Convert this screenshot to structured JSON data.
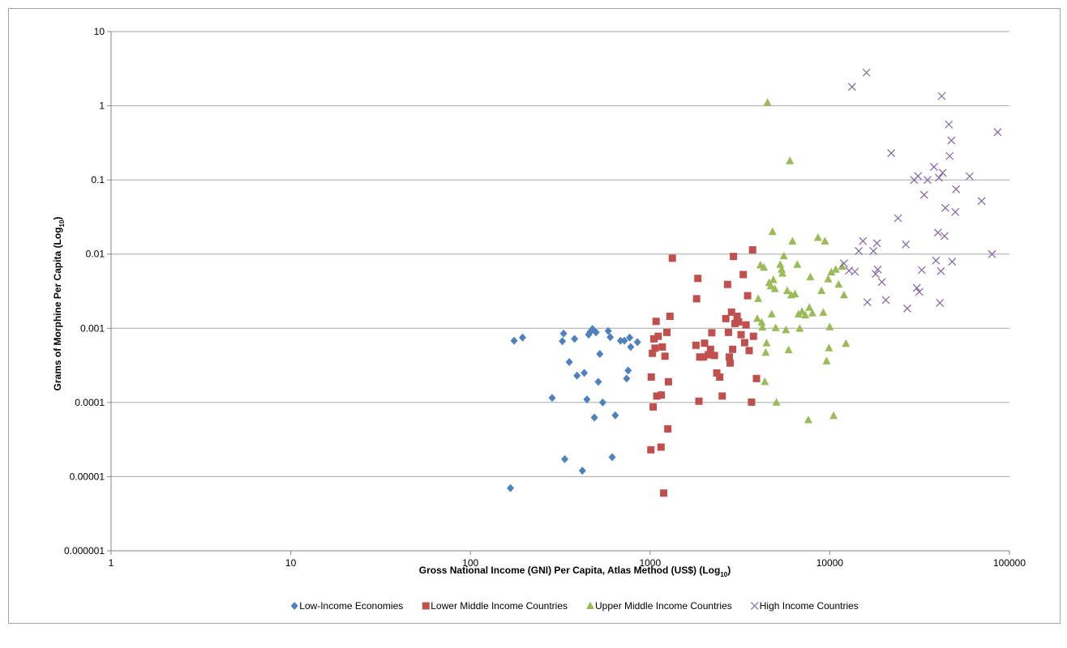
{
  "chart_data": {
    "type": "scatter",
    "title": "",
    "xlabel": {
      "main": "Gross National Income (GNI) Per Capita, Atlas Method (US$) (Log",
      "sub": "10",
      "close": ")"
    },
    "ylabel": {
      "main": "Grams of Morphine Per Capita (Log",
      "sub": "10",
      "close": ")"
    },
    "xscale": "log",
    "yscale": "log",
    "xlim": [
      1,
      100000
    ],
    "ylim": [
      1e-06,
      10
    ],
    "grid": "horizontal",
    "legend_position": "bottom",
    "x_ticks": [
      "1",
      "10",
      "100",
      "1000",
      "10000",
      "100000"
    ],
    "y_ticks": [
      "10",
      "1",
      "0.1",
      "0.01",
      "0.001",
      "0.0001",
      "0.00001",
      "0.000001"
    ],
    "series": [
      {
        "name": "Low-Income Economies",
        "marker": "diamond",
        "color": "#4f81bd",
        "points": [
          [
            167,
            7e-06
          ],
          [
            175,
            0.00068
          ],
          [
            195,
            0.00075
          ],
          [
            285,
            0.000115
          ],
          [
            325,
            0.00067
          ],
          [
            330,
            0.00085
          ],
          [
            335,
            1.72e-05
          ],
          [
            355,
            0.00035
          ],
          [
            380,
            0.00072
          ],
          [
            392,
            0.00023
          ],
          [
            420,
            1.2e-05
          ],
          [
            430,
            0.00025
          ],
          [
            445,
            0.00011
          ],
          [
            455,
            0.00082
          ],
          [
            465,
            0.0009
          ],
          [
            478,
            0.00098
          ],
          [
            490,
            6.25e-05
          ],
          [
            500,
            0.00088
          ],
          [
            515,
            0.00019
          ],
          [
            525,
            0.00045
          ],
          [
            545,
            0.0001
          ],
          [
            585,
            0.00092
          ],
          [
            600,
            0.00076
          ],
          [
            615,
            1.83e-05
          ],
          [
            640,
            6.7e-05
          ],
          [
            685,
            0.00068
          ],
          [
            720,
            0.00068
          ],
          [
            740,
            0.00021
          ],
          [
            755,
            0.00027
          ],
          [
            770,
            0.00075
          ],
          [
            780,
            0.00056
          ],
          [
            850,
            0.00065
          ]
        ]
      },
      {
        "name": "Lower Middle Income Countries",
        "marker": "square",
        "color": "#c0504d",
        "points": [
          [
            1010,
            2.3e-05
          ],
          [
            1015,
            0.00022
          ],
          [
            1030,
            0.00046
          ],
          [
            1040,
            8.7e-05
          ],
          [
            1050,
            0.00072
          ],
          [
            1065,
            0.00054
          ],
          [
            1080,
            0.00124
          ],
          [
            1090,
            0.000122
          ],
          [
            1110,
            0.00078
          ],
          [
            1150,
            2.5e-05
          ],
          [
            1155,
            0.000126
          ],
          [
            1170,
            0.00056
          ],
          [
            1190,
            6e-06
          ],
          [
            1210,
            0.00042
          ],
          [
            1240,
            0.00088
          ],
          [
            1255,
            4.4e-05
          ],
          [
            1265,
            0.00019
          ],
          [
            1290,
            0.00145
          ],
          [
            1330,
            0.0088
          ],
          [
            1800,
            0.00059
          ],
          [
            1815,
            0.0025
          ],
          [
            1845,
            0.0047
          ],
          [
            1870,
            0.000104
          ],
          [
            1890,
            0.00041
          ],
          [
            1985,
            0.00041
          ],
          [
            2010,
            0.00063
          ],
          [
            2110,
            0.00044
          ],
          [
            2170,
            0.00052
          ],
          [
            2205,
            0.00087
          ],
          [
            2280,
            0.00043
          ],
          [
            2350,
            0.00025
          ],
          [
            2440,
            0.00022
          ],
          [
            2520,
            0.000122
          ],
          [
            2640,
            0.00135
          ],
          [
            2700,
            0.0039
          ],
          [
            2730,
            0.00088
          ],
          [
            2760,
            0.00041
          ],
          [
            2790,
            0.00034
          ],
          [
            2840,
            0.00165
          ],
          [
            2880,
            0.00052
          ],
          [
            2910,
            0.0093
          ],
          [
            2970,
            0.00116
          ],
          [
            3050,
            0.00145
          ],
          [
            3110,
            0.00122
          ],
          [
            3210,
            0.00082
          ],
          [
            3300,
            0.0053
          ],
          [
            3360,
            0.00064
          ],
          [
            3420,
            0.00111
          ],
          [
            3490,
            0.00275
          ],
          [
            3560,
            0.0005
          ],
          [
            3670,
            0.000101
          ],
          [
            3720,
            0.0114
          ],
          [
            3760,
            0.00078
          ],
          [
            3910,
            0.00021
          ]
        ]
      },
      {
        "name": "Upper Middle Income Countries",
        "marker": "triangle",
        "color": "#9bbb59",
        "points": [
          [
            3950,
            0.00135
          ],
          [
            4000,
            0.0025
          ],
          [
            4110,
            0.0071
          ],
          [
            4180,
            0.0012
          ],
          [
            4220,
            0.00103
          ],
          [
            4300,
            0.0066
          ],
          [
            4350,
            0.00019
          ],
          [
            4400,
            0.00047
          ],
          [
            4450,
            0.00063
          ],
          [
            4500,
            1.1
          ],
          [
            4600,
            0.0041
          ],
          [
            4700,
            0.0037
          ],
          [
            4750,
            0.00155
          ],
          [
            4800,
            0.02
          ],
          [
            4850,
            0.0045
          ],
          [
            4950,
            0.0034
          ],
          [
            5000,
            0.00101
          ],
          [
            5050,
            0.0001
          ],
          [
            5300,
            0.0072
          ],
          [
            5400,
            0.0062
          ],
          [
            5450,
            0.0055
          ],
          [
            5550,
            0.0094
          ],
          [
            5700,
            0.00095
          ],
          [
            5800,
            0.0032
          ],
          [
            5900,
            0.00051
          ],
          [
            6000,
            0.18
          ],
          [
            6100,
            0.0028
          ],
          [
            6200,
            0.0149
          ],
          [
            6400,
            0.0029
          ],
          [
            6600,
            0.0072
          ],
          [
            6700,
            0.00155
          ],
          [
            6800,
            0.00099
          ],
          [
            7000,
            0.00168
          ],
          [
            7300,
            0.0015
          ],
          [
            7600,
            5.8e-05
          ],
          [
            7700,
            0.0019
          ],
          [
            7800,
            0.0049
          ],
          [
            8000,
            0.0016
          ],
          [
            8600,
            0.0167
          ],
          [
            9000,
            0.0032
          ],
          [
            9200,
            0.00163
          ],
          [
            9400,
            0.0149
          ],
          [
            9600,
            0.00036
          ],
          [
            9800,
            0.0046
          ],
          [
            9900,
            0.00054
          ],
          [
            10000,
            0.00104
          ],
          [
            10200,
            0.0057
          ],
          [
            10500,
            6.6e-05
          ],
          [
            10800,
            0.0062
          ],
          [
            11200,
            0.0039
          ],
          [
            11700,
            0.0068
          ],
          [
            12300,
            0.00062
          ],
          [
            12000,
            0.0028
          ]
        ]
      },
      {
        "name": "High Income Countries",
        "marker": "x",
        "color": "#8064a2",
        "points": [
          [
            12000,
            0.0075
          ],
          [
            12800,
            0.006
          ],
          [
            13300,
            1.8
          ],
          [
            13800,
            0.0058
          ],
          [
            14500,
            0.011
          ],
          [
            15300,
            0.015
          ],
          [
            16000,
            2.8
          ],
          [
            16200,
            0.00225
          ],
          [
            17500,
            0.011
          ],
          [
            18000,
            0.0054
          ],
          [
            18500,
            0.0062
          ],
          [
            18300,
            0.014
          ],
          [
            19500,
            0.0042
          ],
          [
            20500,
            0.0024
          ],
          [
            22000,
            0.23
          ],
          [
            24000,
            0.0305
          ],
          [
            26500,
            0.0135
          ],
          [
            27000,
            0.00185
          ],
          [
            29500,
            0.1
          ],
          [
            30500,
            0.0035
          ],
          [
            31000,
            0.113
          ],
          [
            31500,
            0.0031
          ],
          [
            32500,
            0.0061
          ],
          [
            33500,
            0.063
          ],
          [
            35000,
            0.1
          ],
          [
            38000,
            0.15
          ],
          [
            39000,
            0.0082
          ],
          [
            40000,
            0.0195
          ],
          [
            40500,
            0.107
          ],
          [
            41000,
            0.0022
          ],
          [
            41500,
            0.0059
          ],
          [
            42000,
            1.35
          ],
          [
            42500,
            0.125
          ],
          [
            43500,
            0.0175
          ],
          [
            44000,
            0.042
          ],
          [
            46000,
            0.56
          ],
          [
            46500,
            0.21
          ],
          [
            47500,
            0.34
          ],
          [
            48000,
            0.0079
          ],
          [
            50000,
            0.037
          ],
          [
            50500,
            0.075
          ],
          [
            60000,
            0.112
          ],
          [
            70000,
            0.052
          ],
          [
            80000,
            0.01
          ],
          [
            86000,
            0.44
          ]
        ]
      }
    ]
  }
}
